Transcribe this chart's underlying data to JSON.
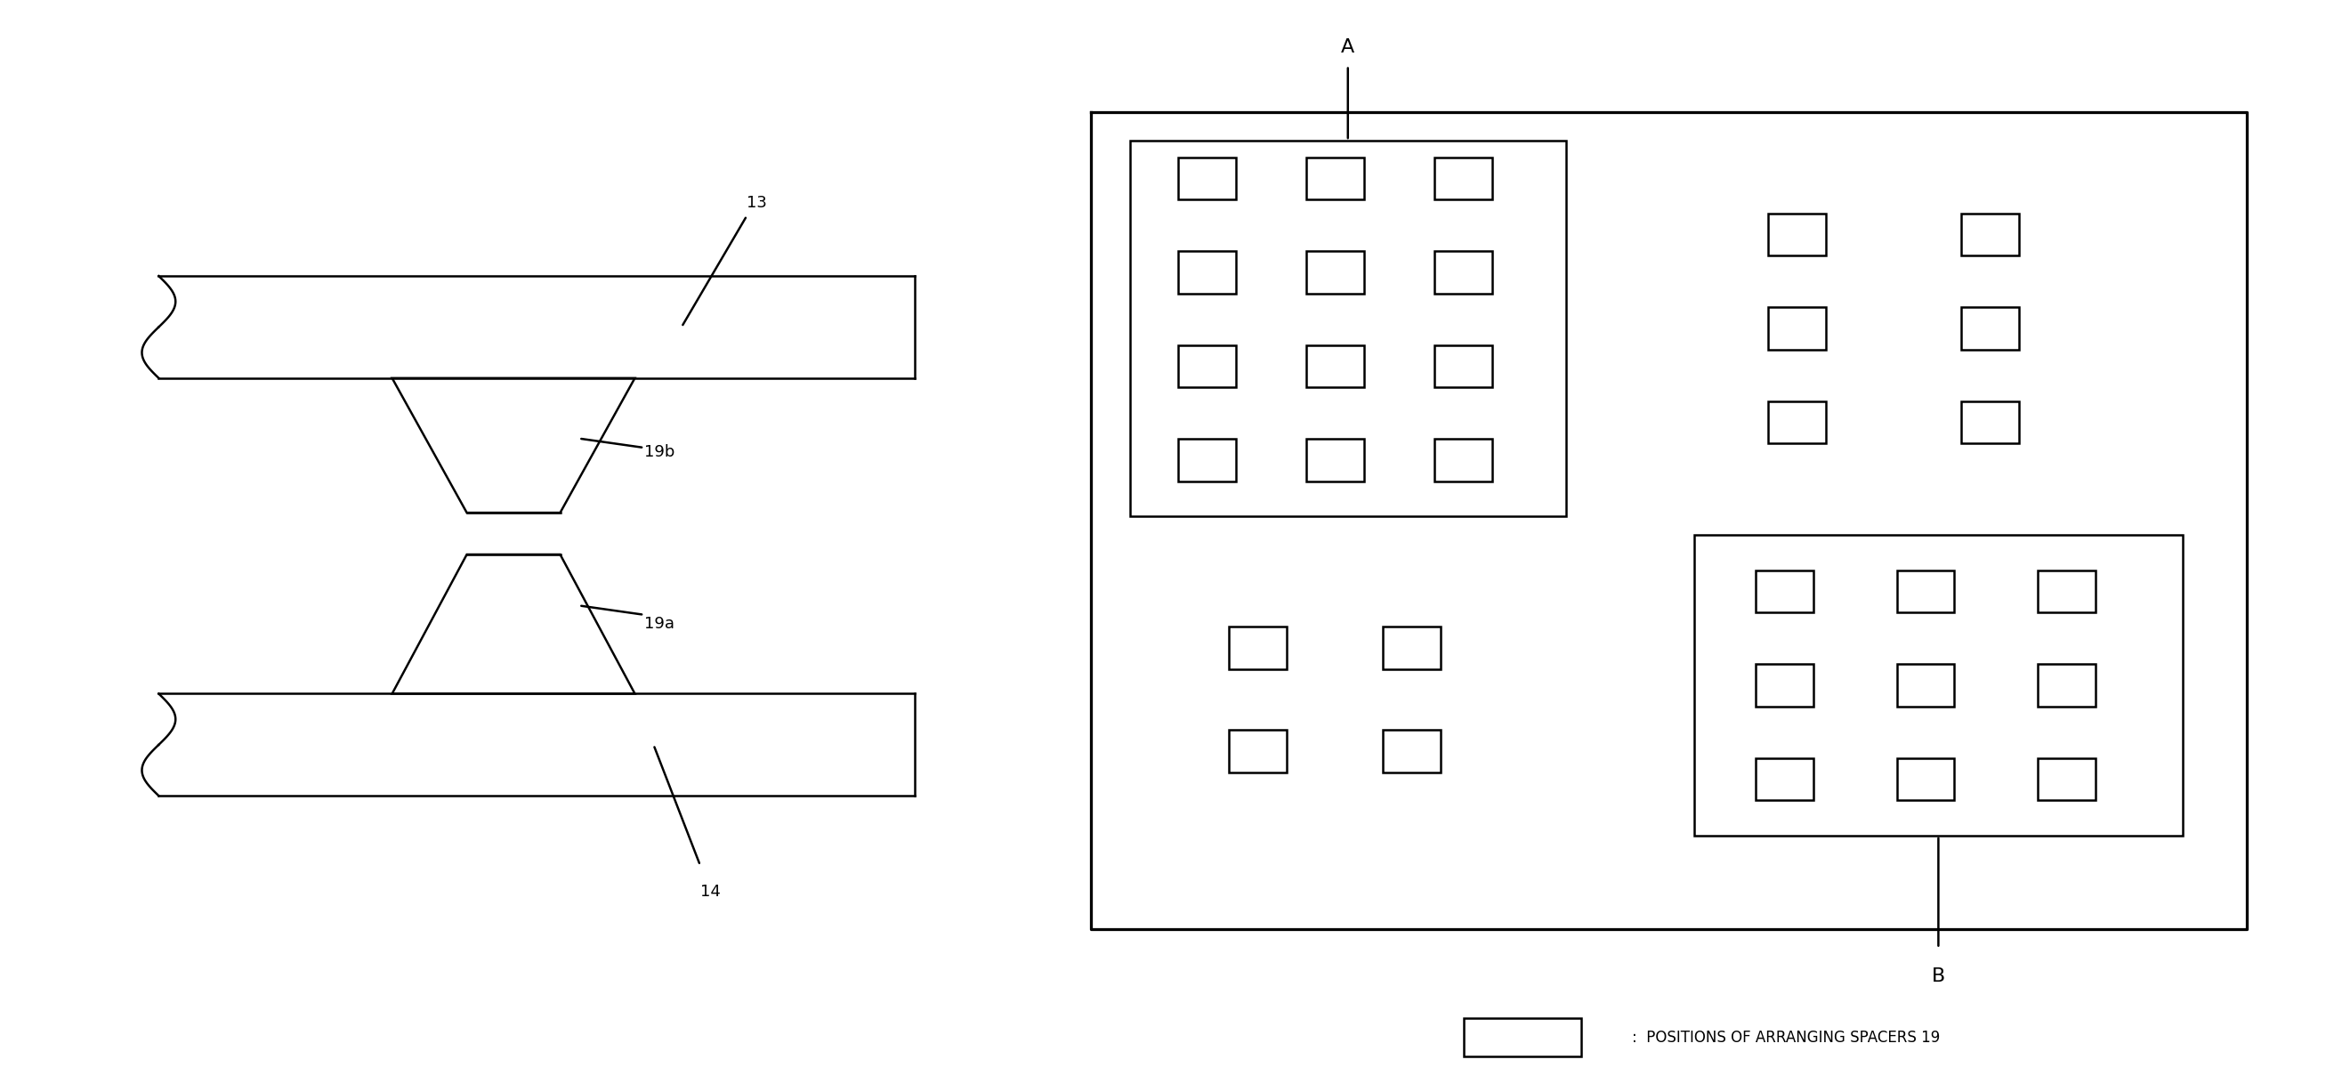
{
  "fig_width": 26.23,
  "fig_height": 12.27,
  "bg_color": "#ffffff",
  "line_color": "#000000",
  "line_width": 1.8,
  "label_13": "13",
  "label_14": "14",
  "label_19a": "19a",
  "label_19b": "19b",
  "label_A": "A",
  "label_B": "B",
  "font_size_labels": 13,
  "font_size_AB": 14
}
